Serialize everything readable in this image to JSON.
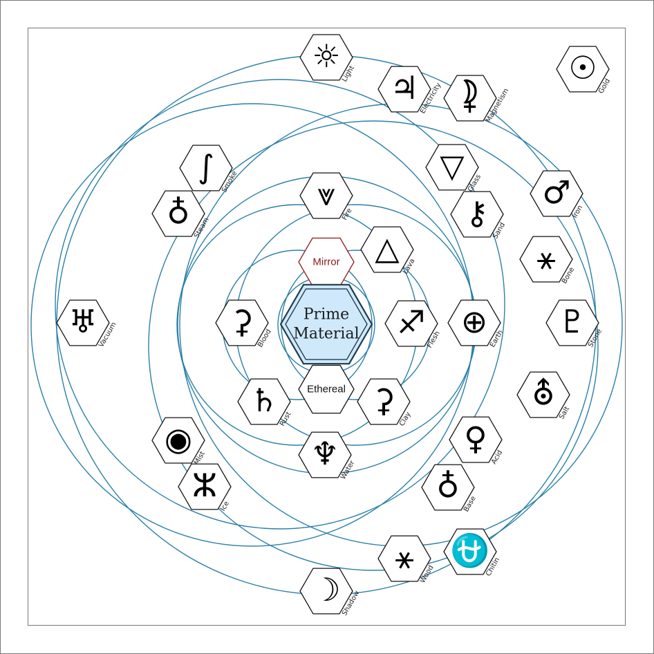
{
  "colors": {
    "orbit": "#2a7fa8",
    "mirror": "#8b1a1a",
    "core_fill": "#cfe9fb",
    "core_stroke": "#1f3a4d"
  },
  "core": {
    "line1": "Prime",
    "line2": "Material"
  },
  "mirror": {
    "label": "Mirror"
  },
  "ethereal": {
    "label": "Ethereal"
  },
  "elements": [
    {
      "key": "light",
      "label": "Light",
      "icon": "sun-icon",
      "glyph": "☼"
    },
    {
      "key": "electricity",
      "label": "Electricity",
      "icon": "jupiter-icon",
      "glyph": "♃"
    },
    {
      "key": "magnetism",
      "label": "Magnetism",
      "icon": "magnetism-icon",
      "glyph": "⯝"
    },
    {
      "key": "gold",
      "label": "Gold",
      "icon": "sun-dot-icon",
      "glyph": "☉"
    },
    {
      "key": "smoke",
      "label": "Smoke",
      "icon": "smoke-icon",
      "glyph": "∫"
    },
    {
      "key": "glass",
      "label": "Glass",
      "icon": "goblet-icon",
      "glyph": "▽"
    },
    {
      "key": "iron",
      "label": "Iron",
      "icon": "mars-icon",
      "glyph": "♂"
    },
    {
      "key": "steam",
      "label": "Steam",
      "icon": "steam-icon",
      "glyph": "♁"
    },
    {
      "key": "fire",
      "label": "Fire",
      "icon": "fire-arrow-icon",
      "glyph": "⩔"
    },
    {
      "key": "sand",
      "label": "Sand",
      "icon": "chiron-icon",
      "glyph": "⚷"
    },
    {
      "key": "lava",
      "label": "Lava",
      "icon": "lava-triangle-icon",
      "glyph": "△"
    },
    {
      "key": "bone",
      "label": "Bone",
      "icon": "bone-icon",
      "glyph": "⚹"
    },
    {
      "key": "vacuum",
      "label": "Vacuum",
      "icon": "uranus-icon",
      "glyph": "♅"
    },
    {
      "key": "blood",
      "label": "Blood",
      "icon": "blood-icon",
      "glyph": "⚳"
    },
    {
      "key": "flesh",
      "label": "Flesh",
      "icon": "sagittarius-arrow-icon",
      "glyph": "♐"
    },
    {
      "key": "earth",
      "label": "Earth",
      "icon": "circled-cross-icon",
      "glyph": "⊕"
    },
    {
      "key": "stone",
      "label": "Stone",
      "icon": "pluto-icon",
      "glyph": "♇"
    },
    {
      "key": "salt",
      "label": "Salt",
      "icon": "salt-icon",
      "glyph": "⛢"
    },
    {
      "key": "rust",
      "label": "Rust",
      "icon": "saturn-icon",
      "glyph": "♄"
    },
    {
      "key": "clay",
      "label": "Clay",
      "icon": "ceres-icon",
      "glyph": "⚳"
    },
    {
      "key": "mist",
      "label": "Mist",
      "icon": "eye-icon",
      "glyph": "◉"
    },
    {
      "key": "acid",
      "label": "Acid",
      "icon": "venus-icon",
      "glyph": "♀"
    },
    {
      "key": "water",
      "label": "Water",
      "icon": "trident-icon",
      "glyph": "♆"
    },
    {
      "key": "ice",
      "label": "Ice",
      "icon": "ice-icon",
      "glyph": "ⵣ"
    },
    {
      "key": "base",
      "label": "Base",
      "icon": "base-icon",
      "glyph": "♁"
    },
    {
      "key": "wood",
      "label": "Wood",
      "icon": "wood-asterisk-icon",
      "glyph": "⚹"
    },
    {
      "key": "chitin",
      "label": "Chitin",
      "icon": "chitin-icon",
      "glyph": "⛎"
    },
    {
      "key": "shadow",
      "label": "Shadow",
      "icon": "shadow-moon-icon",
      "glyph": "☽"
    }
  ]
}
